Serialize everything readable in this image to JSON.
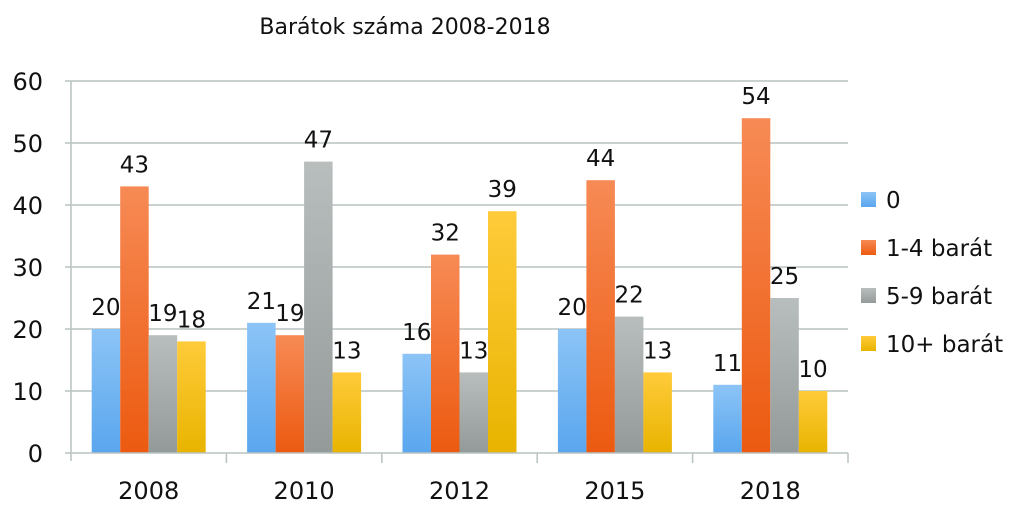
{
  "chart_data": {
    "type": "bar",
    "title": "Barátok száma 2008-2018",
    "xlabel": "",
    "ylabel": "",
    "ylim": [
      0,
      60
    ],
    "yticks": [
      0,
      10,
      20,
      30,
      40,
      50,
      60
    ],
    "grid": true,
    "legend_position": "right",
    "categories": [
      "2008",
      "2010",
      "2012",
      "2015",
      "2018"
    ],
    "series": [
      {
        "name": "0",
        "values": [
          20,
          21,
          16,
          20,
          11
        ],
        "color": "#5aa6ee",
        "color_light": "#8cc4f6"
      },
      {
        "name": "1-4 barát",
        "values": [
          43,
          19,
          32,
          44,
          54
        ],
        "color": "#ec5a10",
        "color_light": "#f78a55"
      },
      {
        "name": "5-9 barát",
        "values": [
          19,
          47,
          13,
          22,
          25
        ],
        "color": "#939a99",
        "color_light": "#b8bebd"
      },
      {
        "name": "10+ barát",
        "values": [
          18,
          13,
          39,
          13,
          10
        ],
        "color": "#e8b400",
        "color_light": "#ffcb3a"
      }
    ]
  }
}
